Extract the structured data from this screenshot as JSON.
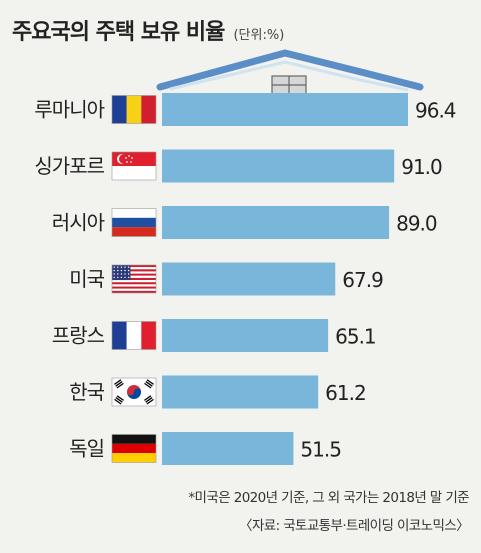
{
  "chart_data": {
    "type": "bar",
    "orientation": "horizontal",
    "title": "주요국의 주택 보유 비율",
    "unit": "(단위:%)",
    "categories": [
      "루마니아",
      "싱가포르",
      "러시아",
      "미국",
      "프랑스",
      "한국",
      "독일"
    ],
    "values": [
      96.4,
      91.0,
      89.0,
      67.9,
      65.1,
      61.2,
      51.5
    ],
    "value_labels": [
      "96.4",
      "91.0",
      "89.0",
      "67.9",
      "65.1",
      "61.2",
      "51.5"
    ],
    "flags": [
      "romania-flag",
      "singapore-flag",
      "russia-flag",
      "usa-flag",
      "france-flag",
      "korea-flag",
      "germany-flag"
    ],
    "bar_color": "#7ab6da",
    "roof_color": "#5b8ec6",
    "footnote": "*미국은 2020년 기준, 그 외 국가는 2018년 말 기준",
    "source": "〈자료: 국토교통부·트레이딩 이코노믹스〉"
  }
}
